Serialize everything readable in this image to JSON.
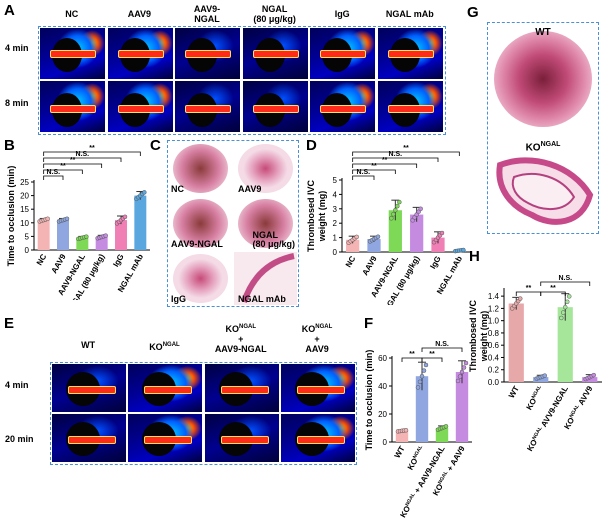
{
  "panels": {
    "A": {
      "label": "A",
      "columns": [
        "NC",
        "AAV9",
        "AAV9-\nNGAL",
        "NGAL\n(80 μg/kg)",
        "IgG",
        "NGAL mAb"
      ],
      "rows": [
        "4 min",
        "8 min"
      ]
    },
    "B": {
      "label": "B"
    },
    "C": {
      "label": "C",
      "images": [
        "NC",
        "AAV9",
        "AAV9-NGAL",
        "NGAL\n(80 μg/kg)",
        "IgG",
        "NGAL mAb"
      ]
    },
    "D": {
      "label": "D"
    },
    "E": {
      "label": "E",
      "columns": [
        "WT",
        "KO",
        "KO\n+\nAAV9-NGAL",
        "KO\n+\nAAV9"
      ],
      "col_sup": [
        "",
        "NGAL",
        "NGAL",
        "NGAL"
      ],
      "rows": [
        "4 min",
        "20 min"
      ]
    },
    "F": {
      "label": "F"
    },
    "G": {
      "label": "G",
      "wt": "WT",
      "ko": "KO",
      "ko_sup": "NGAL"
    },
    "H": {
      "label": "H"
    }
  },
  "chart_data": [
    {
      "id": "B",
      "type": "bar",
      "ylabel": "Time to occlusion (min)",
      "ylim": [
        0,
        25
      ],
      "yticks": [
        0,
        5,
        10,
        15,
        20,
        25
      ],
      "categories": [
        "NC",
        "AAV9",
        "AAV9-NGAL",
        "NGAL (80 μg/kg)",
        "IgG",
        "NGAL mAb"
      ],
      "values": [
        11,
        11,
        4.5,
        4.8,
        11,
        20
      ],
      "errors": [
        0.6,
        0.6,
        0.5,
        0.6,
        1.5,
        1.5
      ],
      "colors": [
        "#f4b4b4",
        "#8fa6e0",
        "#7ed957",
        "#c48be0",
        "#f07fb5",
        "#5aa7e0"
      ],
      "brackets": [
        {
          "a": 0,
          "b": 1,
          "text": "N.S.",
          "level": 1
        },
        {
          "a": 0,
          "b": 2,
          "text": "**",
          "level": 2
        },
        {
          "a": 0,
          "b": 3,
          "text": "**",
          "level": 3
        },
        {
          "a": 0,
          "b": 4,
          "text": "N.S.",
          "level": 4
        },
        {
          "a": 0,
          "b": 5,
          "text": "**",
          "level": 5
        }
      ]
    },
    {
      "id": "D",
      "type": "bar",
      "ylabel": "Thrombosed IVC\nweight (mg)",
      "ylim": [
        0,
        5
      ],
      "yticks": [
        0,
        1,
        2,
        3,
        4,
        5
      ],
      "categories": [
        "NC",
        "AAV9",
        "AAV9-NGAL",
        "NGAL (80 μg/kg)",
        "IgG",
        "NGAL mAb"
      ],
      "values": [
        0.85,
        0.9,
        2.9,
        2.6,
        1.0,
        0.1
      ],
      "errors": [
        0.25,
        0.2,
        0.7,
        0.5,
        0.4,
        0.05
      ],
      "colors": [
        "#f4b4b4",
        "#8fa6e0",
        "#7ed957",
        "#c48be0",
        "#f07fb5",
        "#5aa7e0"
      ],
      "brackets": [
        {
          "a": 0,
          "b": 1,
          "text": "N.S.",
          "level": 1
        },
        {
          "a": 0,
          "b": 2,
          "text": "**",
          "level": 2
        },
        {
          "a": 0,
          "b": 3,
          "text": "**",
          "level": 3
        },
        {
          "a": 0,
          "b": 4,
          "text": "N.S.",
          "level": 4
        },
        {
          "a": 0,
          "b": 5,
          "text": "**",
          "level": 5
        }
      ]
    },
    {
      "id": "F",
      "type": "bar",
      "ylabel": "Time to occlusion (min)",
      "ylim": [
        0,
        60
      ],
      "yticks": [
        0,
        20,
        40,
        60
      ],
      "categories": [
        "WT",
        "KO",
        "KO + AAV9-NGAL",
        "KO + AAV9"
      ],
      "cat_sup": [
        "",
        "NGAL",
        "NGAL",
        "NGAL"
      ],
      "values": [
        8,
        47,
        10,
        50
      ],
      "errors": [
        0.5,
        10,
        1.5,
        8
      ],
      "colors": [
        "#f4b4b4",
        "#8fa6e0",
        "#7ed957",
        "#c48be0"
      ],
      "brackets": [
        {
          "a": 0,
          "b": 1,
          "text": "**",
          "level": 1
        },
        {
          "a": 1,
          "b": 2,
          "text": "**",
          "level": 1
        },
        {
          "a": 1,
          "b": 3,
          "text": "N.S.",
          "level": 2
        }
      ]
    },
    {
      "id": "H",
      "type": "bar",
      "ylabel": "Thrombosed IVC\nweight (mg)",
      "ylim": [
        0,
        1.5
      ],
      "yticks": [
        0.0,
        0.2,
        0.4,
        0.6,
        0.8,
        1.0,
        1.2,
        1.4
      ],
      "categories": [
        "WT",
        "KO",
        "KO AVV9-NGAL",
        "KO AVV9"
      ],
      "cat_sup": [
        "",
        "NGAL",
        "NGAL",
        "NGAL"
      ],
      "values": [
        1.28,
        0.08,
        1.22,
        0.08
      ],
      "errors": [
        0.1,
        0.03,
        0.22,
        0.04
      ],
      "colors": [
        "#e6a8a8",
        "#8fa6e0",
        "#a6e69b",
        "#c48be0"
      ],
      "brackets": [
        {
          "a": 0,
          "b": 1,
          "text": "**",
          "level": 1
        },
        {
          "a": 1,
          "b": 2,
          "text": "**",
          "level": 1
        },
        {
          "a": 1,
          "b": 3,
          "text": "N.S.",
          "level": 2
        }
      ]
    }
  ]
}
